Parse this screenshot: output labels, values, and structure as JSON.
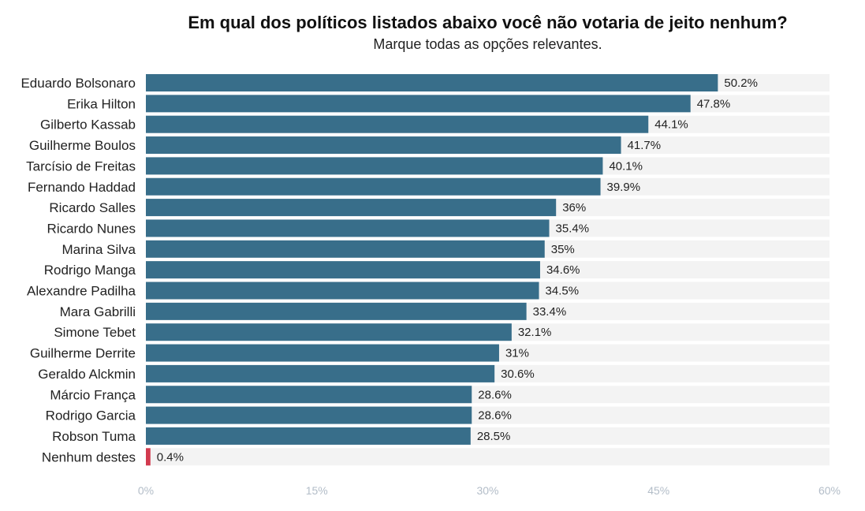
{
  "title": "Em qual dos políticos listados abaixo você não votaria de jeito nenhum?",
  "subtitle": "Marque todas as opções relevantes.",
  "colors": {
    "bar": "#386e8a",
    "highlight": "#d23a4e",
    "track": "#f3f3f3",
    "tick_text": "#b3bdc8"
  },
  "chart_data": {
    "type": "bar",
    "orientation": "horizontal",
    "categories": [
      "Eduardo Bolsonaro",
      "Erika Hilton",
      "Gilberto Kassab",
      "Guilherme Boulos",
      "Tarcísio de Freitas",
      "Fernando Haddad",
      "Ricardo Salles",
      "Ricardo Nunes",
      "Marina Silva",
      "Rodrigo Manga",
      "Alexandre Padilha",
      "Mara Gabrilli",
      "Simone Tebet",
      "Guilherme Derrite",
      "Geraldo Alckmin",
      "Márcio França",
      "Rodrigo Garcia",
      "Robson Tuma",
      "Nenhum destes"
    ],
    "values": [
      50.2,
      47.8,
      44.1,
      41.7,
      40.1,
      39.9,
      36,
      35.4,
      35,
      34.6,
      34.5,
      33.4,
      32.1,
      31,
      30.6,
      28.6,
      28.6,
      28.5,
      0.4
    ],
    "value_labels": [
      "50.2%",
      "47.8%",
      "44.1%",
      "41.7%",
      "40.1%",
      "39.9%",
      "36%",
      "35.4%",
      "35%",
      "34.6%",
      "34.5%",
      "33.4%",
      "32.1%",
      "31%",
      "30.6%",
      "28.6%",
      "28.6%",
      "28.5%",
      "0.4%"
    ],
    "highlight_categories": [
      "Nenhum destes"
    ],
    "xlim": [
      0,
      60
    ],
    "x_ticks": [
      0,
      15,
      30,
      45,
      60
    ],
    "x_tick_labels": [
      "0%",
      "15%",
      "30%",
      "45%",
      "60%"
    ],
    "xlabel": "",
    "ylabel": "",
    "grid": false,
    "legend": "none"
  }
}
